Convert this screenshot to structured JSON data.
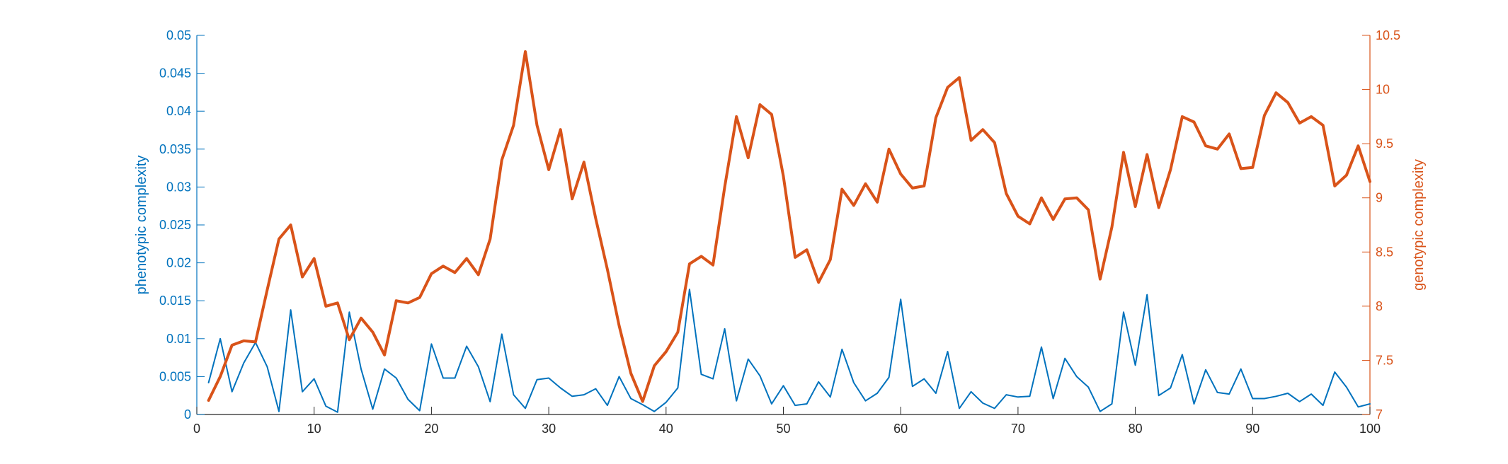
{
  "chart_data": {
    "type": "line",
    "title": "",
    "xlabel": "",
    "ylabel_left": "phenotypic complexity",
    "ylabel_right": "genotypic complexity",
    "xlim": [
      0,
      100
    ],
    "ylim_left": [
      0,
      0.05
    ],
    "ylim_right": [
      7,
      10.5
    ],
    "x_ticks": [
      0,
      10,
      20,
      30,
      40,
      50,
      60,
      70,
      80,
      90,
      100
    ],
    "y_left_ticks": [
      0,
      0.005,
      0.01,
      0.015,
      0.02,
      0.025,
      0.03,
      0.035,
      0.04,
      0.045,
      0.05
    ],
    "y_right_ticks": [
      7,
      7.5,
      8,
      8.5,
      9,
      9.5,
      10,
      10.5
    ],
    "x_tick_labels": [
      "0",
      "10",
      "20",
      "30",
      "40",
      "50",
      "60",
      "70",
      "80",
      "90",
      "100"
    ],
    "y_left_tick_labels": [
      "0",
      "0.005",
      "0.01",
      "0.015",
      "0.02",
      "0.025",
      "0.03",
      "0.035",
      "0.04",
      "0.045",
      "0.05"
    ],
    "y_right_tick_labels": [
      "7",
      "7.5",
      "8",
      "8.5",
      "9",
      "9.5",
      "10",
      "10.5"
    ],
    "grid": false,
    "colors": {
      "left": "#0072BD",
      "right": "#D95319",
      "axis": "#262626"
    },
    "series": [
      {
        "axis": "left",
        "x": [
          1,
          2,
          3,
          4,
          5,
          6,
          7,
          8,
          9,
          10,
          11,
          12,
          13,
          14,
          15,
          16,
          17,
          18,
          19,
          20,
          21,
          22,
          23,
          24,
          25,
          26,
          27,
          28,
          29,
          30,
          31,
          32,
          33,
          34,
          35,
          36,
          37,
          38,
          39,
          40,
          41,
          42,
          43,
          44,
          45,
          46,
          47,
          48,
          49,
          50,
          51,
          52,
          53,
          54,
          55,
          56,
          57,
          58,
          59,
          60,
          61,
          62,
          63,
          64,
          65,
          66,
          67,
          68,
          69,
          70,
          71,
          72,
          73,
          74,
          75,
          76,
          77,
          78,
          79,
          80,
          81,
          82,
          83,
          84,
          85,
          86,
          87,
          88,
          89,
          90,
          91,
          92,
          93,
          94,
          95,
          96,
          97,
          98,
          99,
          100
        ],
        "values": [
          0.0042,
          0.01,
          0.003,
          0.0068,
          0.0095,
          0.0063,
          0.0004,
          0.0138,
          0.003,
          0.0047,
          0.0011,
          0.0003,
          0.0135,
          0.006,
          0.0007,
          0.006,
          0.0048,
          0.002,
          0.0005,
          0.0093,
          0.0048,
          0.0048,
          0.009,
          0.0063,
          0.0017,
          0.0106,
          0.0026,
          0.0008,
          0.0046,
          0.0048,
          0.0035,
          0.0024,
          0.0026,
          0.0034,
          0.0012,
          0.005,
          0.0021,
          0.0013,
          0.0004,
          0.0016,
          0.0035,
          0.0165,
          0.0053,
          0.0047,
          0.0113,
          0.0018,
          0.0073,
          0.0051,
          0.0014,
          0.0038,
          0.0012,
          0.0014,
          0.0043,
          0.0023,
          0.0086,
          0.0042,
          0.0018,
          0.0028,
          0.0049,
          0.0152,
          0.0037,
          0.0047,
          0.0028,
          0.0083,
          0.0008,
          0.003,
          0.0015,
          0.0008,
          0.0026,
          0.0023,
          0.0024,
          0.0089,
          0.0021,
          0.0074,
          0.005,
          0.0036,
          0.0004,
          0.0014,
          0.0135,
          0.0065,
          0.0158,
          0.0025,
          0.0035,
          0.0079,
          0.0014,
          0.0059,
          0.0029,
          0.0027,
          0.006,
          0.0021,
          0.0021,
          0.0024,
          0.0028,
          0.0017,
          0.0027,
          0.0012,
          0.0056,
          0.0036,
          0.001,
          0.0014
        ]
      },
      {
        "axis": "right",
        "x": [
          1,
          2,
          3,
          4,
          5,
          6,
          7,
          8,
          9,
          10,
          11,
          12,
          13,
          14,
          15,
          16,
          17,
          18,
          19,
          20,
          21,
          22,
          23,
          24,
          25,
          26,
          27,
          28,
          29,
          30,
          31,
          32,
          33,
          34,
          35,
          36,
          37,
          38,
          39,
          40,
          41,
          42,
          43,
          44,
          45,
          46,
          47,
          48,
          49,
          50,
          51,
          52,
          53,
          54,
          55,
          56,
          57,
          58,
          59,
          60,
          61,
          62,
          63,
          64,
          65,
          66,
          67,
          68,
          69,
          70,
          71,
          72,
          73,
          74,
          75,
          76,
          77,
          78,
          79,
          80,
          81,
          82,
          83,
          84,
          85,
          86,
          87,
          88,
          89,
          90,
          91,
          92,
          93,
          94,
          95,
          96,
          97,
          98,
          99,
          100
        ],
        "values": [
          7.13,
          7.35,
          7.64,
          7.68,
          7.67,
          8.15,
          8.62,
          8.75,
          8.27,
          8.44,
          8.0,
          8.03,
          7.69,
          7.89,
          7.76,
          7.55,
          8.05,
          8.03,
          8.08,
          8.3,
          8.37,
          8.31,
          8.44,
          8.29,
          8.62,
          9.35,
          9.67,
          10.35,
          9.67,
          9.26,
          9.63,
          8.99,
          9.33,
          8.81,
          8.34,
          7.82,
          7.38,
          7.12,
          7.45,
          7.58,
          7.76,
          8.39,
          8.46,
          8.38,
          9.1,
          9.75,
          9.37,
          9.86,
          9.77,
          9.2,
          8.45,
          8.52,
          8.22,
          8.43,
          9.08,
          8.93,
          9.13,
          8.96,
          9.45,
          9.22,
          9.09,
          9.11,
          9.74,
          10.02,
          10.11,
          9.53,
          9.63,
          9.51,
          9.04,
          8.83,
          8.76,
          9.0,
          8.8,
          8.99,
          9.0,
          8.89,
          8.25,
          8.73,
          9.42,
          8.92,
          9.4,
          8.91,
          9.26,
          9.75,
          9.7,
          9.48,
          9.45,
          9.59,
          9.27,
          9.28,
          9.76,
          9.97,
          9.88,
          9.69,
          9.75,
          9.67,
          9.11,
          9.21,
          9.48,
          9.15
        ]
      }
    ]
  }
}
